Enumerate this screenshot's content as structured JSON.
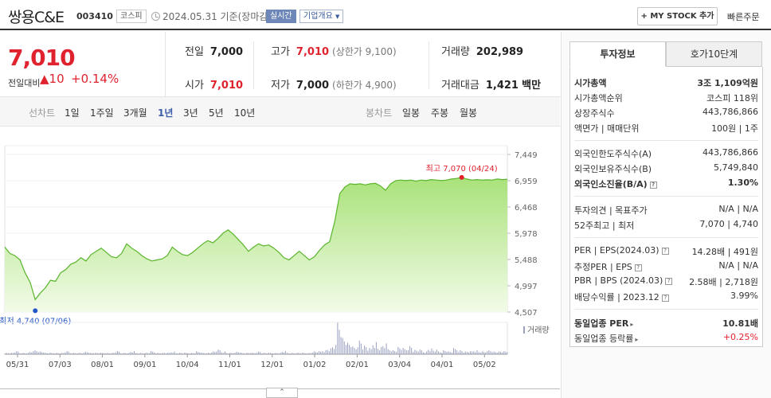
{
  "header": {
    "company": "쌍용C&E",
    "code": "003410",
    "market_badge": "코스피",
    "date_text": "2024.05.31 기준(장마감)",
    "realtime_badge": "실시간",
    "info_badge": "기업개요",
    "mystock_label": "+ MY STOCK 추가",
    "quick_order_label": "빠른주문"
  },
  "price": {
    "current": "7,010",
    "diff_label": "전일대비",
    "diff": "▲10",
    "rate": "+0.14%"
  },
  "quote": {
    "prev_label": "전일",
    "prev": "7,000",
    "high_label": "고가",
    "high": "7,010",
    "upper_limit": "(상한가 9,100)",
    "volume_label": "거래량",
    "volume": "202,989",
    "open_label": "시가",
    "open": "7,010",
    "low_label": "저가",
    "low": "7,000",
    "lower_limit": "(하한가 4,900)",
    "amount_label": "거래대금",
    "amount": "1,421",
    "amount_unit": "백만"
  },
  "chart_tabs": {
    "line_head": "선차트",
    "line": [
      "1일",
      "1주일",
      "3개월",
      "1년",
      "3년",
      "5년",
      "10년"
    ],
    "active": "1년",
    "candle_head": "봉차트",
    "candle": [
      "일봉",
      "주봉",
      "월봉"
    ]
  },
  "chart_data": {
    "type": "area",
    "y_ticks": [
      "7,449",
      "6,959",
      "6,468",
      "5,978",
      "5,488",
      "4,997",
      "4,507"
    ],
    "ylim": [
      4507,
      7449
    ],
    "x_ticks": [
      "05/31",
      "07/03",
      "08/01",
      "09/01",
      "10/04",
      "11/01",
      "12/01",
      "01/02",
      "02/01",
      "03/04",
      "04/01",
      "05/02"
    ],
    "max_label": "최고 7,070 (04/24)",
    "min_label": "최저 4,740 (07/06)",
    "volume_label": "거래량",
    "series": [
      {
        "values": [
          5720,
          5600,
          5560,
          5480,
          5240,
          5060,
          4740,
          4860,
          4960,
          5100,
          5080,
          5240,
          5300,
          5400,
          5440,
          5520,
          5460,
          5580,
          5640,
          5700,
          5620,
          5540,
          5520,
          5600,
          5780,
          5700,
          5640,
          5560,
          5500,
          5460,
          5480,
          5500,
          5560,
          5720,
          5640,
          5580,
          5560,
          5620,
          5700,
          5780,
          5840,
          5800,
          5880,
          5980,
          6040,
          5960,
          5860,
          5760,
          5640,
          5720,
          5780,
          5740,
          5760,
          5700,
          5620,
          5520,
          5480,
          5560,
          5640,
          5560,
          5480,
          5540,
          5660,
          5760,
          5820,
          6200,
          6720,
          6840,
          6900,
          6890,
          6900,
          6880,
          6900,
          6910,
          6860,
          6780,
          6900,
          6960,
          6970,
          6960,
          6970,
          6950,
          6970,
          6960,
          6980,
          6970,
          6960,
          6970,
          6990,
          7000,
          7020,
          6990,
          6970,
          6980,
          6970,
          6975,
          6970,
          6990,
          6980,
          6985
        ]
      }
    ],
    "volume": [
      1,
      1,
      2,
      1,
      1,
      2,
      3,
      2,
      1,
      1,
      1,
      1,
      2,
      1,
      1,
      1,
      2,
      1,
      1,
      1,
      1,
      1,
      2,
      1,
      1,
      2,
      1,
      1,
      1,
      2,
      1,
      1,
      1,
      2,
      1,
      1,
      1,
      1,
      2,
      1,
      1,
      2,
      3,
      2,
      1,
      1,
      2,
      1,
      1,
      1,
      2,
      1,
      1,
      1,
      1,
      2,
      1,
      1,
      1,
      1,
      1,
      2,
      2,
      3,
      4,
      6,
      25,
      12,
      8,
      5,
      10,
      6,
      4,
      9,
      5,
      7,
      4,
      3,
      5,
      4,
      6,
      3,
      3,
      2,
      4,
      3,
      2,
      3,
      2,
      4,
      3,
      2,
      2,
      3,
      2,
      2,
      3,
      2,
      2,
      2
    ]
  },
  "tabs_right": {
    "invest_info": "투자정보",
    "order_book": "호가10단계"
  },
  "invest": {
    "market_cap_label": "시가총액",
    "market_cap": "3조 1,109억원",
    "rank_label": "시가총액순위",
    "rank": "코스피 118위",
    "shares_label": "상장주식수",
    "shares": "443,786,866",
    "face_label": "액면가 | 매매단위",
    "face": "100원 | 1주",
    "foreign_limit_label": "외국인한도주식수(A)",
    "foreign_limit": "443,786,866",
    "foreign_hold_label": "외국인보유주식수(B)",
    "foreign_hold": "5,749,840",
    "foreign_rate_label": "외국인소진율(B/A)",
    "foreign_rate": "1.30%",
    "opinion_label": "투자의견 | 목표주가",
    "opinion": "N/A | N/A",
    "week52_label": "52주최고 | 최저",
    "week52": "7,070 | 4,740",
    "per_label": "PER | EPS(2024.03)",
    "per": "14.28배 | 491원",
    "est_per_label": "추정PER | EPS",
    "est_per": "N/A | N/A",
    "pbr_label": "PBR | BPS (2024.03)",
    "pbr": "2.58배 | 2,718원",
    "dividend_label": "배당수익률 | 2023.12",
    "dividend": "3.99%",
    "industry_per_label": "동일업종 PER",
    "industry_per": "10.81배",
    "industry_rate_label": "동일업종 등락률",
    "industry_rate": "+0.25%"
  },
  "collapse_label": "⌃"
}
